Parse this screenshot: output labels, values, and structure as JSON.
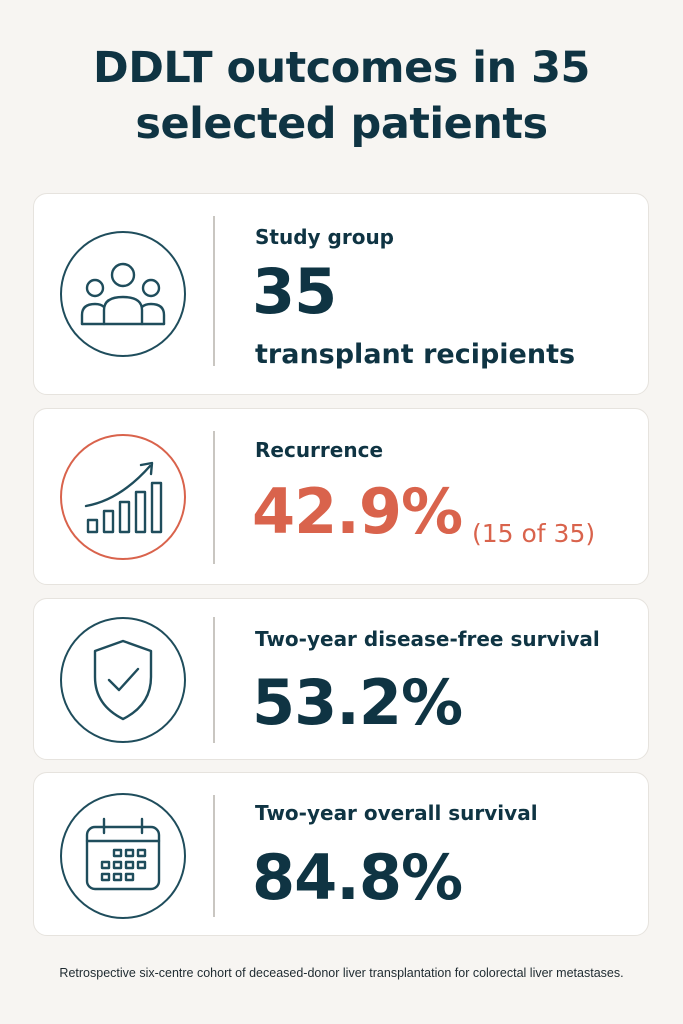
{
  "title_line1": "DDLT outcomes in 35",
  "title_line2": "selected patients",
  "colors": {
    "navy": "#0f3443",
    "accent": "#d9634c",
    "background": "#f7f5f2"
  },
  "cards": [
    {
      "icon": "people-group-icon",
      "label": "Study group",
      "value": "35",
      "sub": "transplant recipients"
    },
    {
      "icon": "trending-up-bar-chart-icon",
      "label": "Recurrence",
      "value": "42.9%",
      "detail": "(15 of 35)"
    },
    {
      "icon": "shield-check-icon",
      "label": "Two-year disease-free survival",
      "value": "53.2%"
    },
    {
      "icon": "calendar-icon",
      "label": "Two-year overall survival",
      "value": "84.8%"
    }
  ],
  "footnote": "Retrospective six-centre cohort of deceased-donor liver transplantation for colorectal liver metastases."
}
